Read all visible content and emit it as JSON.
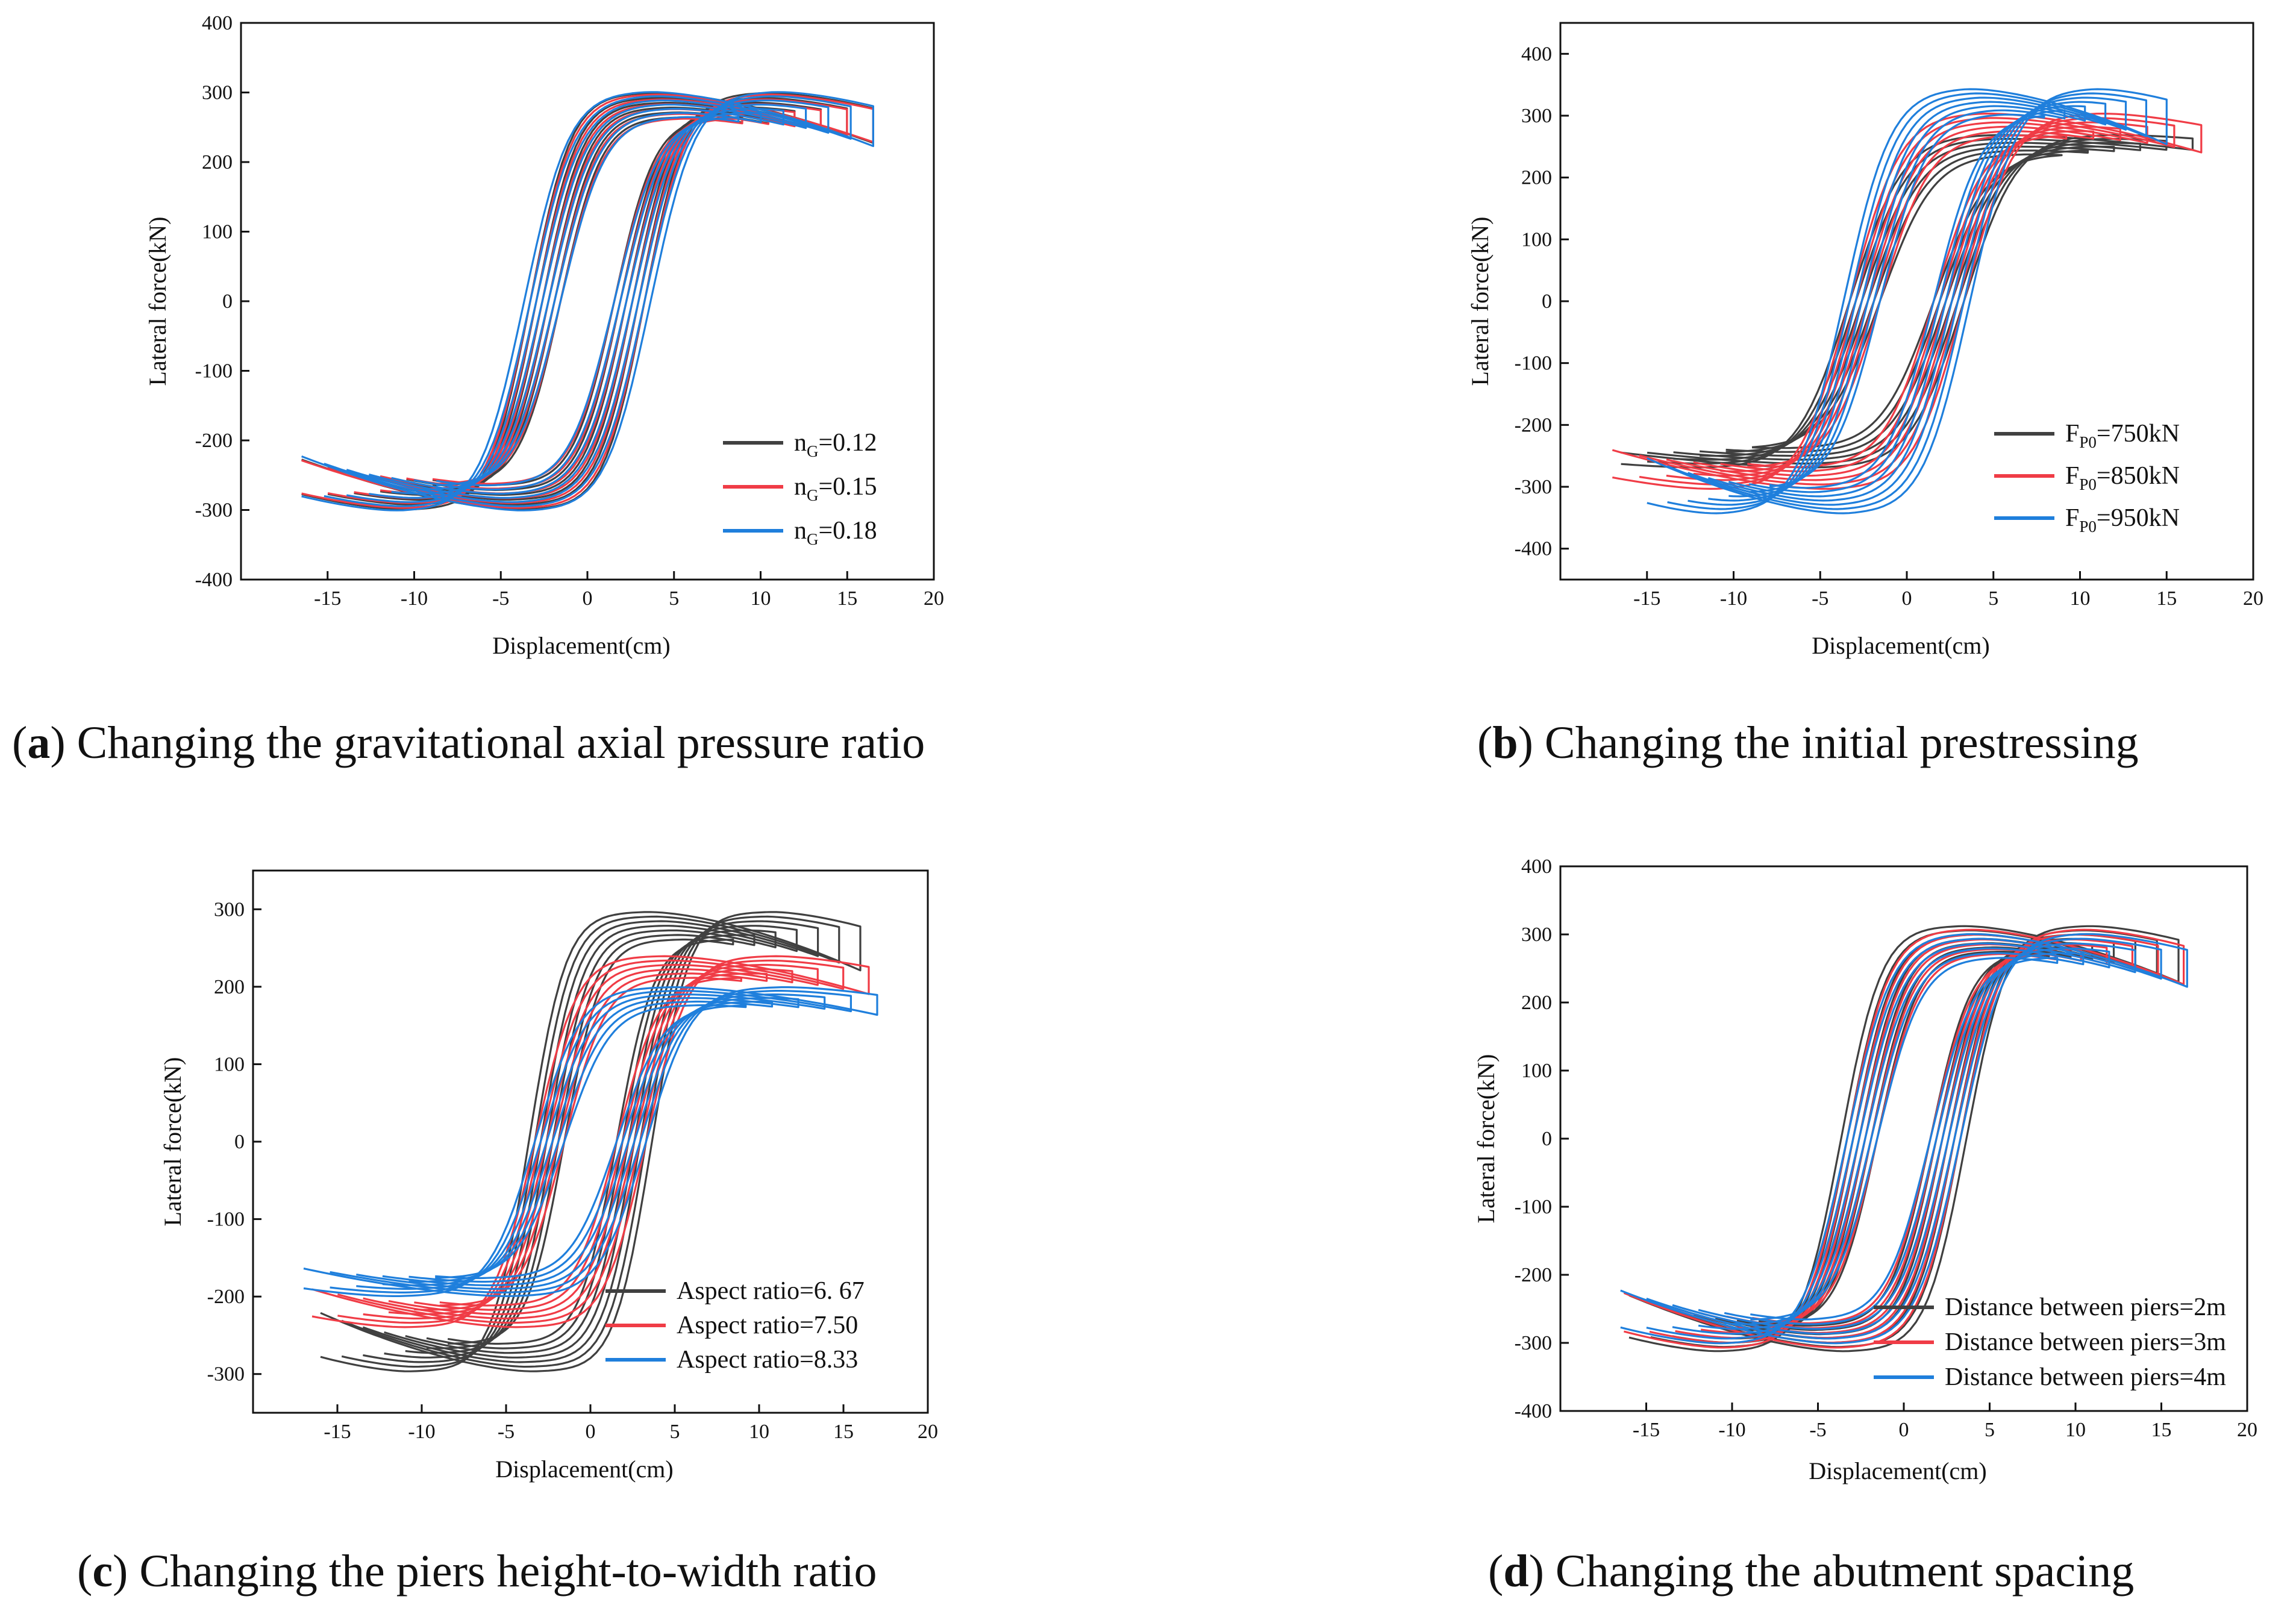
{
  "chart_data": [
    {
      "id": "a",
      "type": "line",
      "caption_letter": "a",
      "caption": "Changing the gravitational axial pressure ratio",
      "xlabel": "Displacement(cm)",
      "ylabel": "Lateral force(kN)",
      "xlim": [
        -20,
        20
      ],
      "ylim": [
        -400,
        400
      ],
      "xticks": [
        -15,
        -10,
        -5,
        0,
        5,
        10,
        15,
        20
      ],
      "yticks": [
        -400,
        -300,
        -200,
        -100,
        0,
        100,
        200,
        300,
        400
      ],
      "legend_position": "bottom-right",
      "series": [
        {
          "name_main": "n",
          "name_sub": "G",
          "name_tail": "=0.12",
          "color": "#404040",
          "peak_force": 300,
          "peak_disp": 7,
          "end_disp": 16.5,
          "end_force": 255,
          "k": 0.42,
          "loops": 6
        },
        {
          "name_main": "n",
          "name_sub": "G",
          "name_tail": "=0.15",
          "color": "#f03c46",
          "peak_force": 298,
          "peak_disp": 7,
          "end_disp": 16.5,
          "end_force": 255,
          "k": 0.4,
          "loops": 6
        },
        {
          "name_main": "n",
          "name_sub": "G",
          "name_tail": "=0.18",
          "color": "#1f7fdc",
          "peak_force": 302,
          "peak_disp": 7,
          "end_disp": 16.5,
          "end_force": 255,
          "k": 0.38,
          "loops": 7
        }
      ]
    },
    {
      "id": "b",
      "type": "line",
      "caption_letter": "b",
      "caption": "Changing the initial prestressing",
      "xlabel": "Displacement(cm)",
      "ylabel": "Lateral force(kN)",
      "xlim": [
        -20,
        20
      ],
      "ylim": [
        -450,
        450
      ],
      "xticks": [
        -15,
        -10,
        -5,
        0,
        5,
        10,
        15,
        20
      ],
      "yticks": [
        -400,
        -300,
        -200,
        -100,
        0,
        100,
        200,
        300,
        400
      ],
      "legend_position": "bottom-right",
      "series": [
        {
          "name_main": "F",
          "name_sub": "P0",
          "name_tail": "=750kN",
          "color": "#404040",
          "peak_force": 270,
          "peak_disp": 8,
          "end_disp": 16.5,
          "end_force": 255,
          "k": 0.32,
          "loops": 6
        },
        {
          "name_main": "F",
          "name_sub": "P0",
          "name_tail": "=850kN",
          "color": "#f03c46",
          "peak_force": 305,
          "peak_disp": 7.5,
          "end_disp": 17,
          "end_force": 265,
          "k": 0.34,
          "loops": 6
        },
        {
          "name_main": "F",
          "name_sub": "P0",
          "name_tail": "=950kN",
          "color": "#1f7fdc",
          "peak_force": 345,
          "peak_disp": 7,
          "end_disp": 15,
          "end_force": 295,
          "k": 0.36,
          "loops": 7
        }
      ]
    },
    {
      "id": "c",
      "type": "line",
      "caption_letter": "c",
      "caption": "Changing the piers height-to-width ratio",
      "xlabel": "Displacement(cm)",
      "ylabel": "Lateral force(kN)",
      "xlim": [
        -20,
        20
      ],
      "ylim": [
        -350,
        350
      ],
      "xticks": [
        -15,
        -10,
        -5,
        0,
        5,
        10,
        15,
        20
      ],
      "yticks": [
        -300,
        -200,
        -100,
        0,
        100,
        200,
        300
      ],
      "legend_position": "bottom-right",
      "series": [
        {
          "name_main": "Aspect ratio=6. 67",
          "name_sub": "",
          "name_tail": "",
          "color": "#404040",
          "peak_force": 297,
          "peak_disp": 7,
          "end_disp": 16,
          "end_force": 253,
          "k": 0.45,
          "loops": 7
        },
        {
          "name_main": "Aspect ratio=7.50",
          "name_sub": "",
          "name_tail": "",
          "color": "#f03c46",
          "peak_force": 240,
          "peak_disp": 7.5,
          "end_disp": 16.5,
          "end_force": 210,
          "k": 0.4,
          "loops": 6
        },
        {
          "name_main": "Aspect ratio=8.33",
          "name_sub": "",
          "name_tail": "",
          "color": "#1f7fdc",
          "peak_force": 200,
          "peak_disp": 8,
          "end_disp": 17,
          "end_force": 178,
          "k": 0.36,
          "loops": 6
        }
      ]
    },
    {
      "id": "d",
      "type": "line",
      "caption_letter": "d",
      "caption": "Changing the abutment spacing",
      "xlabel": "Displacement(cm)",
      "ylabel": "Lateral force(kN)",
      "xlim": [
        -20,
        20
      ],
      "ylim": [
        -400,
        400
      ],
      "xticks": [
        -15,
        -10,
        -5,
        0,
        5,
        10,
        15,
        20
      ],
      "yticks": [
        -400,
        -300,
        -200,
        -100,
        0,
        100,
        200,
        300,
        400
      ],
      "legend_position": "bottom-right",
      "series": [
        {
          "name_main": "Distance between piers=2m",
          "name_sub": "",
          "name_tail": "",
          "color": "#404040",
          "peak_force": 313,
          "peak_disp": 7,
          "end_disp": 16,
          "end_force": 265,
          "k": 0.42,
          "loops": 7
        },
        {
          "name_main": "Distance between piers=3m",
          "name_sub": "",
          "name_tail": "",
          "color": "#f03c46",
          "peak_force": 308,
          "peak_disp": 7,
          "end_disp": 16.3,
          "end_force": 258,
          "k": 0.4,
          "loops": 6
        },
        {
          "name_main": "Distance between piers=4m",
          "name_sub": "",
          "name_tail": "",
          "color": "#1f7fdc",
          "peak_force": 302,
          "peak_disp": 7,
          "end_disp": 16.5,
          "end_force": 253,
          "k": 0.38,
          "loops": 6
        }
      ]
    }
  ]
}
